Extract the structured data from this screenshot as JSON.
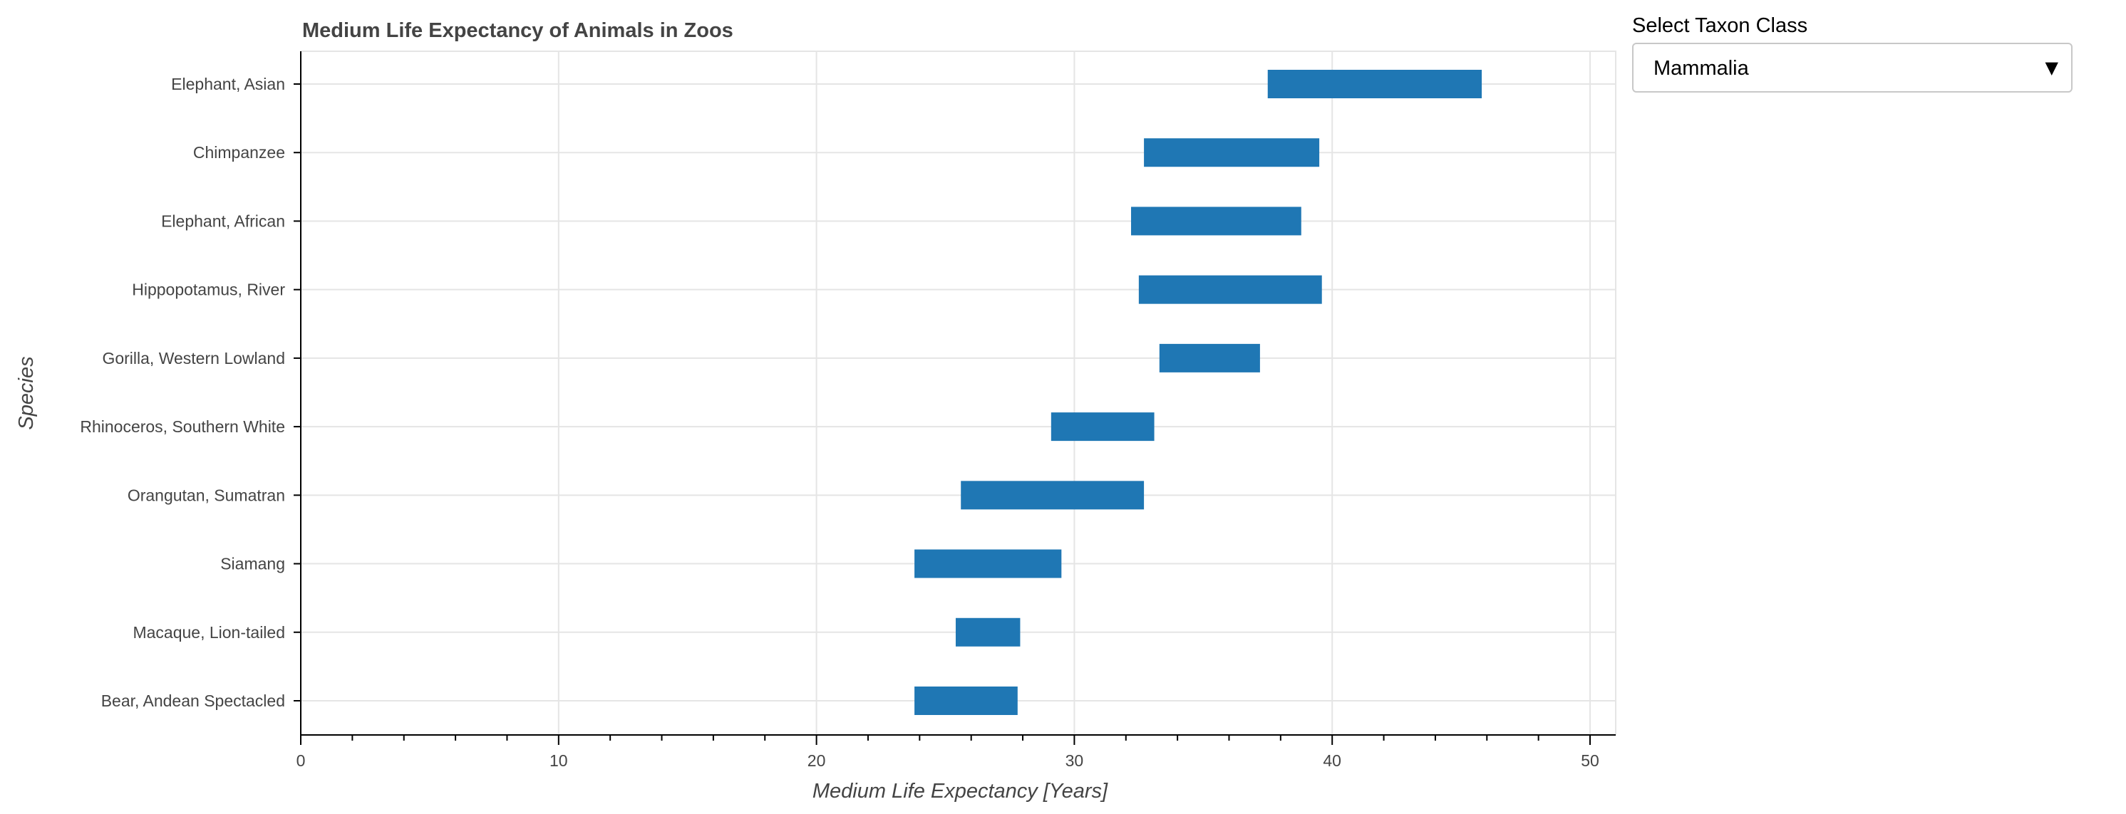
{
  "chart_data": {
    "type": "bar",
    "orientation": "horizontal",
    "title": "Medium Life Expectancy of Animals in Zoos",
    "xlabel": "Medium Life Expectancy [Years]",
    "ylabel": "Species",
    "xlim": [
      0,
      51
    ],
    "x_ticks": [
      0,
      10,
      20,
      30,
      40,
      50
    ],
    "grid": true,
    "bar_color": "#1f77b4",
    "categories": [
      "Elephant, Asian",
      "Chimpanzee",
      "Elephant, African",
      "Hippopotamus, River",
      "Gorilla, Western Lowland",
      "Rhinoceros, Southern White",
      "Orangutan, Sumatran",
      "Siamang",
      "Macaque, Lion-tailed",
      "Bear, Andean Spectacled"
    ],
    "ranges": [
      [
        37.5,
        45.8
      ],
      [
        32.7,
        39.5
      ],
      [
        32.2,
        38.8
      ],
      [
        32.5,
        39.6
      ],
      [
        33.3,
        37.2
      ],
      [
        29.1,
        33.1
      ],
      [
        25.6,
        32.7
      ],
      [
        23.8,
        29.5
      ],
      [
        25.4,
        27.9
      ],
      [
        23.8,
        27.8
      ]
    ]
  },
  "controls": {
    "taxon_label": "Select Taxon Class",
    "taxon_selected": "Mammalia",
    "arrow_icon": "triangle-down-icon"
  }
}
